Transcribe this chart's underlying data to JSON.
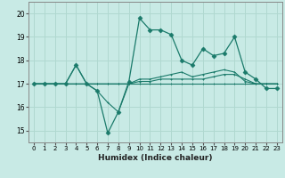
{
  "title": "",
  "xlabel": "Humidex (Indice chaleur)",
  "ylabel": "",
  "background_color": "#c8eae5",
  "grid_color": "#b0d8d0",
  "line_color": "#1a7a6a",
  "x": [
    0,
    1,
    2,
    3,
    4,
    5,
    6,
    7,
    8,
    9,
    10,
    11,
    12,
    13,
    14,
    15,
    16,
    17,
    18,
    19,
    20,
    21,
    22,
    23
  ],
  "line_main": [
    17.0,
    17.0,
    17.0,
    17.0,
    17.8,
    17.0,
    16.7,
    14.9,
    15.8,
    17.1,
    19.8,
    19.3,
    19.3,
    19.1,
    18.0,
    17.8,
    18.5,
    18.2,
    18.3,
    19.0,
    17.5,
    17.2,
    16.8,
    16.8
  ],
  "line1": [
    17.0,
    17.0,
    17.0,
    17.0,
    17.8,
    17.0,
    16.7,
    16.2,
    15.8,
    17.0,
    17.2,
    17.2,
    17.3,
    17.4,
    17.5,
    17.3,
    17.4,
    17.5,
    17.6,
    17.5,
    17.1,
    17.0,
    17.0,
    17.0
  ],
  "line2": [
    17.0,
    17.0,
    17.0,
    17.0,
    17.0,
    17.0,
    17.0,
    17.0,
    17.0,
    17.0,
    17.1,
    17.1,
    17.2,
    17.2,
    17.2,
    17.2,
    17.2,
    17.3,
    17.4,
    17.4,
    17.2,
    17.0,
    17.0,
    17.0
  ],
  "line3": [
    17.0,
    17.0,
    17.0,
    17.0,
    17.0,
    17.0,
    17.0,
    17.0,
    17.0,
    17.0,
    17.0,
    17.0,
    17.0,
    17.0,
    17.0,
    17.0,
    17.0,
    17.0,
    17.0,
    17.0,
    17.0,
    17.0,
    17.0,
    17.0
  ],
  "ylim": [
    14.5,
    20.5
  ],
  "yticks": [
    15,
    16,
    17,
    18,
    19,
    20
  ],
  "xlim": [
    -0.5,
    23.5
  ]
}
